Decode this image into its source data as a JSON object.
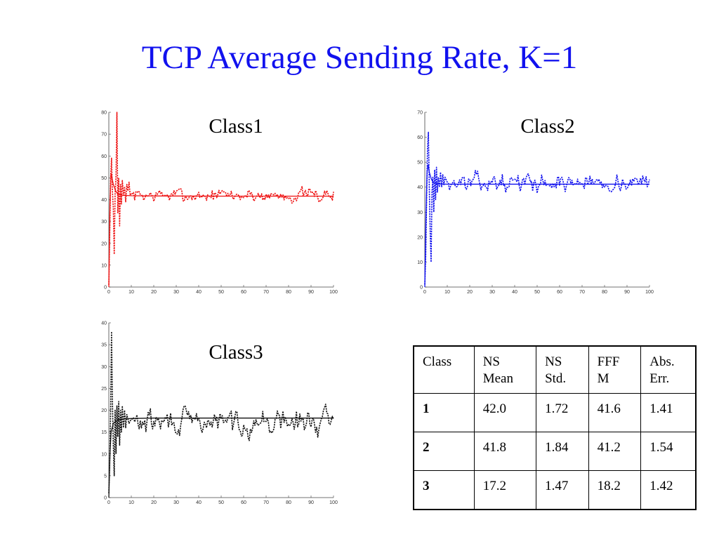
{
  "slide": {
    "title": "TCP Average Sending Rate, K=1"
  },
  "chart_data": [
    {
      "type": "line",
      "title": "Class1",
      "xlim": [
        0,
        100
      ],
      "ylim": [
        0,
        80
      ],
      "xticks": [
        0,
        10,
        20,
        30,
        40,
        50,
        60,
        70,
        80,
        90,
        100
      ],
      "yticks": [
        0,
        10,
        20,
        30,
        40,
        50,
        60,
        70,
        80
      ],
      "color": "#ee1111",
      "grid": false,
      "series": [
        {
          "style": "solid",
          "values": [
            [
              0,
              0
            ],
            [
              0.5,
              38
            ],
            [
              1,
              52
            ],
            [
              2,
              47
            ],
            [
              3,
              44
            ],
            [
              4,
              42.5
            ],
            [
              6,
              42
            ],
            [
              10,
              41.8
            ],
            [
              20,
              41.7
            ],
            [
              50,
              41.6
            ],
            [
              100,
              41.6
            ]
          ]
        },
        {
          "style": "dashed",
          "target": 42.0,
          "noise": 1.72,
          "seed": 7,
          "values": [
            [
              0,
              1
            ],
            [
              0.4,
              25
            ],
            [
              0.8,
              50
            ],
            [
              1.2,
              59
            ],
            [
              1.6,
              44
            ],
            [
              2,
              36
            ],
            [
              2.4,
              15
            ],
            [
              2.8,
              43
            ],
            [
              3.2,
              51
            ],
            [
              3.6,
              80
            ],
            [
              4,
              34
            ],
            [
              4.4,
              50
            ],
            [
              4.8,
              28
            ],
            [
              5.2,
              47
            ],
            [
              5.6,
              38
            ],
            [
              6,
              49
            ],
            [
              6.5,
              42
            ],
            [
              7,
              46
            ],
            [
              7.5,
              39
            ],
            [
              8,
              47
            ],
            [
              8.5,
              44
            ],
            [
              9,
              48
            ],
            [
              9.5,
              42
            ],
            [
              10,
              43
            ]
          ]
        }
      ]
    },
    {
      "type": "line",
      "title": "Class2",
      "xlim": [
        0,
        100
      ],
      "ylim": [
        0,
        70
      ],
      "xticks": [
        0,
        10,
        20,
        30,
        40,
        50,
        60,
        70,
        80,
        90,
        100
      ],
      "yticks": [
        0,
        10,
        20,
        30,
        40,
        50,
        60,
        70
      ],
      "color": "#1111ee",
      "grid": false,
      "series": [
        {
          "style": "solid",
          "values": [
            [
              0,
              0
            ],
            [
              0.5,
              28
            ],
            [
              1,
              46
            ],
            [
              1.5,
              49
            ],
            [
              2,
              46
            ],
            [
              3,
              43
            ],
            [
              4,
              41.8
            ],
            [
              6,
              41.3
            ],
            [
              10,
              41.2
            ],
            [
              50,
              41.2
            ],
            [
              100,
              41.2
            ]
          ]
        },
        {
          "style": "dashed",
          "target": 41.8,
          "noise": 1.84,
          "seed": 13,
          "values": [
            [
              0,
              1
            ],
            [
              0.4,
              12
            ],
            [
              0.8,
              35
            ],
            [
              1.2,
              55
            ],
            [
              1.6,
              62
            ],
            [
              2,
              40
            ],
            [
              2.4,
              22
            ],
            [
              2.8,
              10
            ],
            [
              3.2,
              38
            ],
            [
              3.6,
              44
            ],
            [
              4,
              30
            ],
            [
              4.4,
              47
            ],
            [
              4.8,
              35
            ],
            [
              5.2,
              48
            ],
            [
              5.6,
              38
            ],
            [
              6,
              44
            ],
            [
              6.5,
              40
            ],
            [
              7,
              46
            ],
            [
              7.5,
              40
            ],
            [
              8,
              45
            ],
            [
              8.5,
              41
            ],
            [
              9,
              44
            ],
            [
              10,
              42
            ]
          ]
        }
      ]
    },
    {
      "type": "line",
      "title": "Class3",
      "xlim": [
        0,
        100
      ],
      "ylim": [
        0,
        40
      ],
      "xticks": [
        0,
        10,
        20,
        30,
        40,
        50,
        60,
        70,
        80,
        90,
        100
      ],
      "yticks": [
        0,
        5,
        10,
        15,
        20,
        25,
        30,
        35,
        40
      ],
      "color": "#111111",
      "grid": false,
      "series": [
        {
          "style": "solid",
          "values": [
            [
              0,
              0
            ],
            [
              0.5,
              10
            ],
            [
              1,
              15
            ],
            [
              2,
              17
            ],
            [
              4,
              17.8
            ],
            [
              6,
              18
            ],
            [
              10,
              18.1
            ],
            [
              20,
              18.2
            ],
            [
              50,
              18.2
            ],
            [
              100,
              18.2
            ]
          ]
        },
        {
          "style": "dashed",
          "target": 17.2,
          "noise": 1.47,
          "seed": 29,
          "values": [
            [
              0,
              1
            ],
            [
              0.4,
              8
            ],
            [
              0.8,
              20
            ],
            [
              1.2,
              38
            ],
            [
              1.6,
              22
            ],
            [
              2,
              12
            ],
            [
              2.4,
              5
            ],
            [
              2.8,
              20
            ],
            [
              3.2,
              10
            ],
            [
              3.6,
              21
            ],
            [
              4,
              14
            ],
            [
              4.4,
              22
            ],
            [
              4.8,
              12
            ],
            [
              5.2,
              20
            ],
            [
              5.6,
              15
            ],
            [
              6,
              21
            ],
            [
              6.5,
              16
            ],
            [
              7,
              20
            ],
            [
              7.5,
              16
            ],
            [
              8,
              19
            ],
            [
              9,
              17
            ],
            [
              10,
              18
            ]
          ]
        }
      ]
    }
  ],
  "table": {
    "headers": [
      "Class",
      "NS\nMean",
      "NS\nStd.",
      "FFF\nM",
      "Abs.\nErr."
    ],
    "rows": [
      [
        "1",
        "42.0",
        "1.72",
        "41.6",
        "1.41"
      ],
      [
        "2",
        "41.8",
        "1.84",
        "41.2",
        "1.54"
      ],
      [
        "3",
        "17.2",
        "1.47",
        "18.2",
        "1.42"
      ]
    ]
  }
}
